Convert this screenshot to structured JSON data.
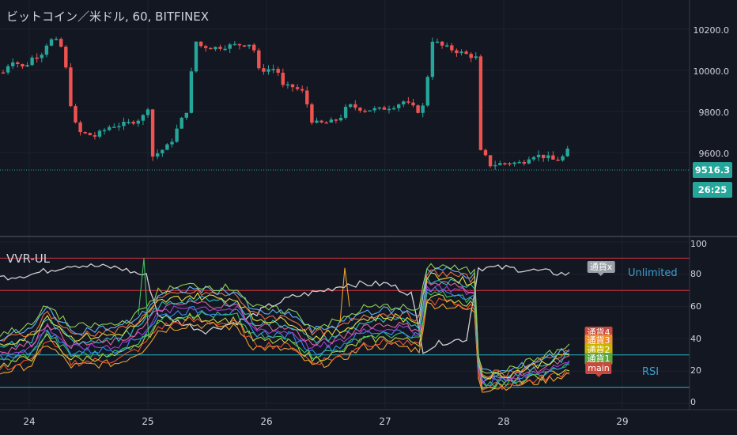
{
  "header": {
    "title": "ビットコイン／米ドル, 60, BITFINEX"
  },
  "indicator": {
    "name": "VVR-UL",
    "label_unlimited": "Unlimited",
    "label_rsi": "RSI"
  },
  "price_axis": {
    "ticks": [
      "10200.0",
      "10000.0",
      "9800.0",
      "9600.0"
    ],
    "current_price": "9516.3",
    "countdown": "26:25"
  },
  "ind_axis": {
    "ticks": [
      "100",
      "80",
      "60",
      "40",
      "20",
      "0"
    ]
  },
  "time_axis": {
    "ticks": [
      "24",
      "25",
      "26",
      "27",
      "28",
      "29"
    ]
  },
  "tags": {
    "unlimited": "通貨x",
    "t4": "通貨4",
    "t3": "通貨3",
    "t2": "通貨2",
    "t1": "通貨1",
    "main": "main"
  },
  "colors": {
    "up": "#26a69a",
    "down": "#ef5350",
    "bg": "#131722",
    "upper_band": "#f23645",
    "lower_band": "#26c6da"
  },
  "chart_data": {
    "type": "candlestick",
    "title": "ビットコイン／米ドル, 60, BITFINEX",
    "ylim": [
      9400,
      10300
    ],
    "x_ticks": [
      "24",
      "25",
      "26",
      "27",
      "28",
      "29"
    ],
    "y_ticks": [
      9600,
      9800,
      10000,
      10200
    ],
    "last_price": 9516.3,
    "indicator": {
      "name": "VVR-UL",
      "ylim": [
        0,
        100
      ],
      "y_ticks": [
        0,
        20,
        40,
        60,
        80,
        100
      ],
      "upper_levels": [
        90,
        70
      ],
      "lower_levels": [
        30,
        10
      ],
      "series_labels": [
        "通貨x",
        "通貨4",
        "通貨3",
        "通貨2",
        "通貨1",
        "main"
      ]
    }
  }
}
